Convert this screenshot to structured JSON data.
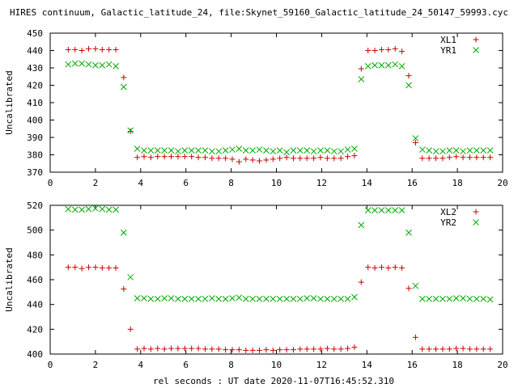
{
  "figure": {
    "title": "HIRES continuum, Galactic_latitude_24, file:Skynet_59160_Galactic_latitude_24_50147_59993.cyc",
    "xlabel": "rel seconds : UT date 2020-11-07T16:45:52.310"
  },
  "colors": {
    "plus_series": "#cc0000",
    "x_series": "#00aa00"
  },
  "chart_data": [
    {
      "type": "scatter",
      "title": "",
      "xlabel": "",
      "ylabel": "Uncalibrated",
      "xlim": [
        0,
        20
      ],
      "ylim": [
        370,
        450
      ],
      "xticks": [
        0,
        2,
        4,
        6,
        8,
        10,
        12,
        14,
        16,
        18,
        20
      ],
      "yticks": [
        370,
        380,
        390,
        400,
        410,
        420,
        430,
        440,
        450
      ],
      "legend_position": "top-right",
      "x": [
        0.8,
        1.1,
        1.4,
        1.7,
        2.0,
        2.3,
        2.6,
        2.9,
        3.25,
        3.55,
        3.85,
        4.15,
        4.45,
        4.75,
        5.05,
        5.35,
        5.65,
        5.95,
        6.25,
        6.55,
        6.85,
        7.15,
        7.45,
        7.75,
        8.05,
        8.35,
        8.65,
        8.95,
        9.25,
        9.55,
        9.85,
        10.15,
        10.45,
        10.75,
        11.05,
        11.35,
        11.65,
        11.95,
        12.25,
        12.55,
        12.85,
        13.15,
        13.45,
        13.75,
        14.05,
        14.35,
        14.65,
        14.95,
        15.25,
        15.55,
        15.85,
        16.15,
        16.45,
        16.75,
        17.05,
        17.35,
        17.65,
        17.95,
        18.25,
        18.55,
        18.85,
        19.15,
        19.45
      ],
      "series": [
        {
          "name": "XL1",
          "marker": "plus",
          "values": [
            440.5,
            440.5,
            440,
            441,
            441,
            440.5,
            440.5,
            440.5,
            424.5,
            393.5,
            378.5,
            379,
            378.5,
            379,
            379,
            379,
            379,
            379,
            379,
            378.5,
            378.5,
            378,
            378,
            378,
            377.5,
            376,
            377.5,
            377,
            376.5,
            377,
            377.5,
            378,
            378.5,
            378,
            378,
            378,
            378,
            378.5,
            378,
            378,
            378,
            379,
            379.5,
            429.5,
            440,
            440,
            440.5,
            440.5,
            441,
            439.5,
            425.5,
            387,
            378,
            378,
            378,
            378,
            378.5,
            379,
            378.5,
            378.5,
            378.5,
            378.5,
            378.5
          ]
        },
        {
          "name": "YR1",
          "marker": "cross",
          "values": [
            432,
            432.5,
            432.5,
            432,
            431.5,
            431.5,
            432,
            431,
            419,
            394,
            383.5,
            382.5,
            382.5,
            382.5,
            382.5,
            382.5,
            382,
            382.5,
            382.5,
            382.5,
            382.5,
            382,
            382,
            382.5,
            383,
            383.5,
            382.5,
            382.5,
            383,
            382.5,
            382,
            382.5,
            381.5,
            382.5,
            382.5,
            382.5,
            382,
            382.5,
            382.5,
            382,
            382,
            383,
            383.5,
            423.5,
            431,
            431.5,
            431.5,
            431.5,
            432,
            431,
            420,
            389.5,
            383,
            382.5,
            382,
            382,
            382.5,
            382.5,
            382,
            382.5,
            382.5,
            382.5,
            382.5
          ]
        }
      ]
    },
    {
      "type": "scatter",
      "title": "",
      "xlabel": "rel seconds : UT date 2020-11-07T16:45:52.310",
      "ylabel": "Uncalibrated",
      "xlim": [
        0,
        20
      ],
      "ylim": [
        400,
        520
      ],
      "xticks": [
        0,
        2,
        4,
        6,
        8,
        10,
        12,
        14,
        16,
        18,
        20
      ],
      "yticks": [
        400,
        420,
        440,
        460,
        480,
        500,
        520
      ],
      "legend_position": "top-right",
      "x": [
        0.8,
        1.1,
        1.4,
        1.7,
        2.0,
        2.3,
        2.6,
        2.9,
        3.25,
        3.55,
        3.85,
        4.15,
        4.45,
        4.75,
        5.05,
        5.35,
        5.65,
        5.95,
        6.25,
        6.55,
        6.85,
        7.15,
        7.45,
        7.75,
        8.05,
        8.35,
        8.65,
        8.95,
        9.25,
        9.55,
        9.85,
        10.15,
        10.45,
        10.75,
        11.05,
        11.35,
        11.65,
        11.95,
        12.25,
        12.55,
        12.85,
        13.15,
        13.45,
        13.75,
        14.05,
        14.35,
        14.65,
        14.95,
        15.25,
        15.55,
        15.85,
        16.15,
        16.45,
        16.75,
        17.05,
        17.35,
        17.65,
        17.95,
        18.25,
        18.55,
        18.85,
        19.15,
        19.45
      ],
      "series": [
        {
          "name": "XL2",
          "marker": "plus",
          "values": [
            470,
            470,
            469,
            470,
            470,
            469.5,
            469.5,
            469.5,
            452.5,
            420,
            404,
            404.5,
            404,
            404.5,
            404,
            404.5,
            404.5,
            404.5,
            404.5,
            404.5,
            404,
            404,
            404,
            403.5,
            403.5,
            403.5,
            403,
            403,
            403,
            403.5,
            403,
            403.5,
            403.5,
            403.5,
            404,
            404,
            404,
            404,
            404.5,
            404,
            404,
            404.5,
            405.5,
            458,
            470,
            469.5,
            470,
            469.5,
            470,
            469.5,
            453,
            413.5,
            404,
            404,
            404,
            404,
            404,
            404.5,
            404.5,
            404,
            404,
            404,
            404
          ]
        },
        {
          "name": "YR2",
          "marker": "cross",
          "values": [
            517,
            516.5,
            516.5,
            517,
            517.5,
            517,
            516.5,
            516.5,
            498,
            462,
            445,
            445,
            444.5,
            444.5,
            445,
            445,
            444.5,
            444.5,
            444.5,
            444.5,
            444.5,
            445,
            444.5,
            444.5,
            445,
            445.5,
            444.5,
            444.5,
            444.5,
            444.5,
            444.5,
            444.5,
            444.5,
            444.5,
            444.5,
            445,
            445,
            444.5,
            444.5,
            444.5,
            444.5,
            444.5,
            446,
            504,
            516,
            516,
            516,
            516,
            516,
            516,
            498,
            455,
            444.5,
            444.5,
            444.5,
            444.5,
            444.5,
            445,
            445,
            444.5,
            444.5,
            444.5,
            444
          ]
        }
      ]
    }
  ]
}
